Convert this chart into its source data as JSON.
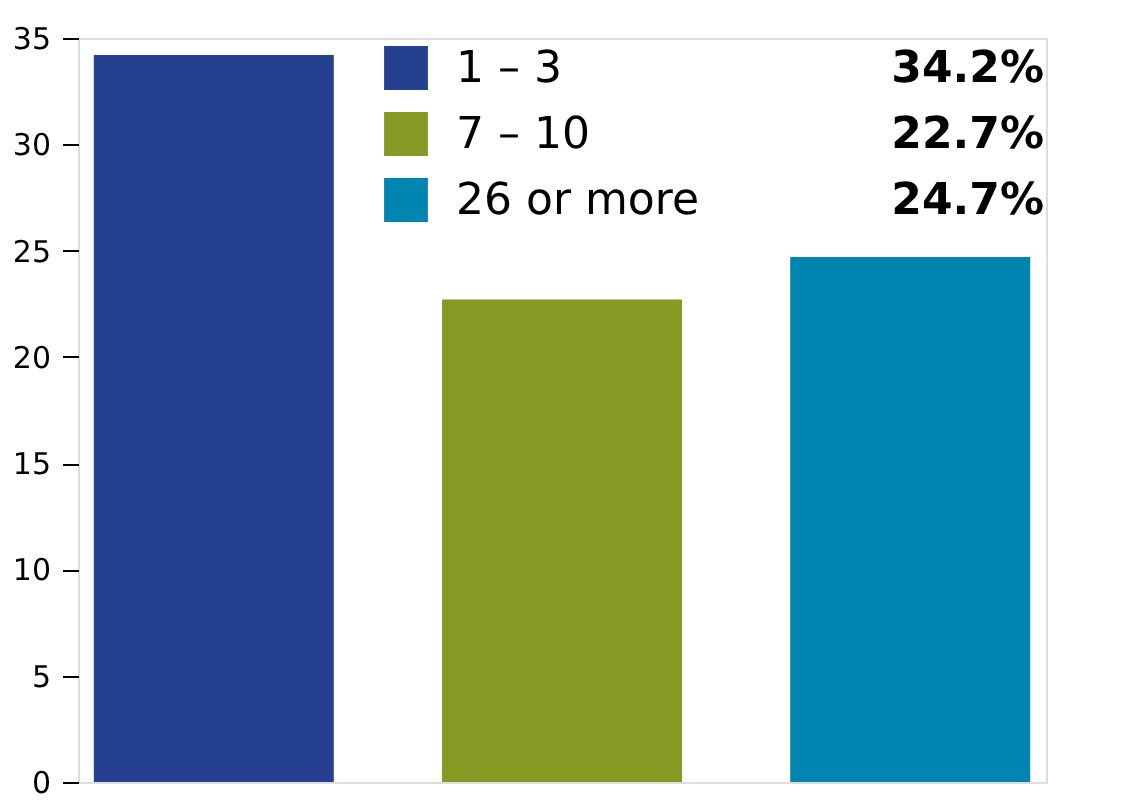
{
  "chart_data": {
    "type": "bar",
    "categories": [
      null
    ],
    "series": [
      {
        "name": "1 – 3",
        "color": "#25408f",
        "values": [
          34.2
        ]
      },
      {
        "name": "7 – 10",
        "color": "#849a22",
        "values": [
          22.7
        ]
      },
      {
        "name": "26 or more",
        "color": "#0085b0",
        "values": [
          24.7
        ]
      }
    ],
    "annotations": [
      "34.2%",
      "22.7%",
      "24.7%"
    ],
    "ylim": [
      0,
      35
    ],
    "yticks": [
      0,
      5,
      10,
      15,
      20,
      25,
      30,
      35
    ],
    "grid": false,
    "legend": "top",
    "tick_labels": "y"
  }
}
